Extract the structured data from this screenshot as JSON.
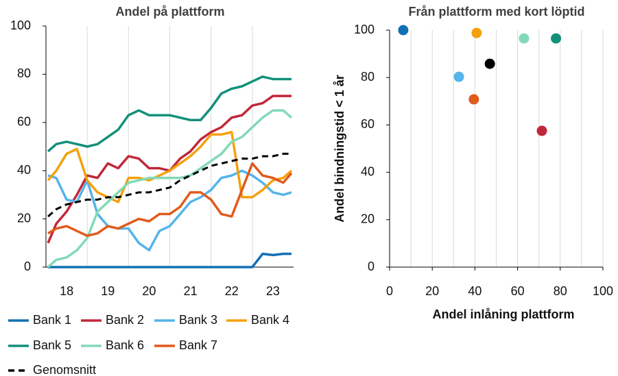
{
  "chart_data": [
    {
      "type": "line",
      "title": "Andel på plattform",
      "x": [
        18.05,
        18.25,
        18.5,
        18.75,
        19,
        19.25,
        19.5,
        19.75,
        20,
        20.25,
        20.5,
        20.75,
        21,
        21.25,
        21.5,
        21.75,
        22,
        22.25,
        22.5,
        22.75,
        23,
        23.25,
        23.5,
        23.75,
        23.95
      ],
      "series": [
        {
          "name": "Bank 1",
          "color": "#1170b5",
          "values": [
            0,
            0,
            0,
            0,
            0,
            0,
            0,
            0,
            0,
            0,
            0,
            0,
            0,
            0,
            0,
            0,
            0,
            0,
            0,
            0,
            0,
            5.5,
            5,
            5.5,
            5.5
          ]
        },
        {
          "name": "Bank 2",
          "color": "#c0283a",
          "values": [
            10,
            18,
            23,
            30,
            38,
            37,
            43,
            41,
            46,
            45,
            41,
            41,
            40,
            45,
            48,
            53,
            56,
            58,
            62,
            63,
            67,
            68,
            71,
            71,
            71
          ]
        },
        {
          "name": "Bank 3",
          "color": "#55b4ea",
          "values": [
            38,
            37,
            28,
            27,
            36,
            22,
            17,
            16,
            16,
            10,
            7,
            15,
            17,
            22,
            27,
            29,
            32,
            37,
            38,
            40,
            38,
            35,
            31,
            30,
            31
          ]
        },
        {
          "name": "Bank 4",
          "color": "#f5a00e",
          "values": [
            36,
            40,
            47,
            49,
            36,
            31,
            29,
            27,
            37,
            37,
            36,
            38,
            40,
            43,
            46,
            50,
            55,
            55,
            56,
            29,
            29,
            32,
            36,
            37,
            40
          ]
        },
        {
          "name": "Bank 5",
          "color": "#13907a",
          "values": [
            48,
            51,
            52,
            51,
            50,
            51,
            54,
            57,
            63,
            65,
            63,
            63,
            63,
            62,
            61,
            61,
            66,
            72,
            74,
            75,
            77,
            79,
            78,
            78,
            78
          ]
        },
        {
          "name": "Bank 6",
          "color": "#83d9b7",
          "values": [
            0,
            3,
            4,
            7,
            12,
            23,
            27,
            31,
            35,
            36,
            37,
            37,
            37,
            37,
            38,
            41,
            44,
            47,
            52,
            54,
            58,
            62,
            65,
            65,
            62
          ]
        },
        {
          "name": "Bank 7",
          "color": "#e05a1c",
          "values": [
            14,
            16,
            17,
            15,
            13,
            14,
            17,
            16,
            18,
            20,
            19,
            22,
            22,
            25,
            31,
            31,
            28,
            22,
            21,
            32,
            43,
            38,
            37,
            35,
            39
          ]
        },
        {
          "name": "Genomsnitt",
          "color": "#000000",
          "dashed": true,
          "values": [
            21,
            24,
            26,
            27,
            28,
            28,
            29,
            29,
            30,
            31,
            31,
            32,
            33,
            36,
            38,
            40,
            42,
            43,
            44,
            45,
            45,
            46,
            46,
            47,
            47
          ]
        }
      ],
      "xlim": [
        18,
        24
      ],
      "ylim": [
        0,
        100
      ],
      "yticks": [
        0,
        20,
        40,
        60,
        80,
        100
      ],
      "xticks": [
        {
          "value": 18.5,
          "label": "18"
        },
        {
          "value": 19.5,
          "label": "19"
        },
        {
          "value": 20.5,
          "label": "20"
        },
        {
          "value": 21.5,
          "label": "21"
        },
        {
          "value": 22.5,
          "label": "22"
        },
        {
          "value": 23.5,
          "label": "23"
        }
      ],
      "xgrid": [
        19,
        20,
        21,
        22,
        23
      ],
      "grid": true
    },
    {
      "type": "scatter",
      "title": "Från plattform med kort löptid",
      "xlabel": "Andel inlåning plattform",
      "ylabel": "Andel bindningstid < 1 år",
      "x": [
        6.4,
        40.8,
        63,
        78,
        47,
        32.5,
        39.5,
        71.4
      ],
      "values": [
        100,
        98.8,
        96.5,
        96.5,
        85.8,
        80.3,
        70.8,
        57.5
      ],
      "colors": [
        "#1170b5",
        "#f5a00e",
        "#83d9b7",
        "#13907a",
        "#000000",
        "#55b4ea",
        "#e05a1c",
        "#c0283a"
      ],
      "xlim": [
        0,
        100
      ],
      "ylim": [
        0,
        100
      ],
      "xticks": [
        0,
        20,
        40,
        60,
        80,
        100
      ],
      "yticks": [
        0,
        20,
        40,
        60,
        80,
        100
      ],
      "xgrid": [
        10,
        20,
        30,
        40,
        50,
        60,
        70,
        80,
        90,
        100
      ],
      "grid": true
    }
  ]
}
